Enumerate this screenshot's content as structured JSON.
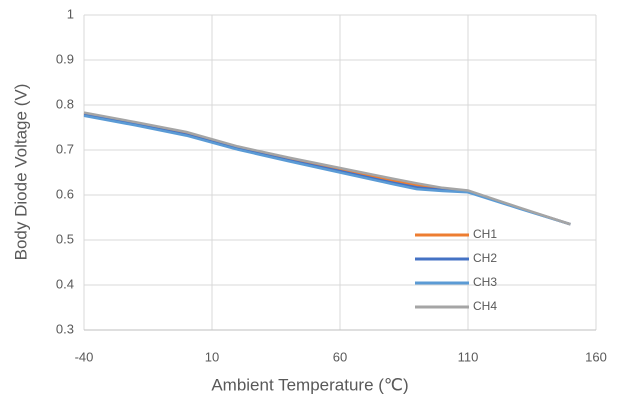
{
  "chart_data": {
    "type": "line",
    "x_label": "Ambient Temperature (℃)",
    "y_label": "Body Diode Voltage (V)",
    "x": [
      -40,
      -20,
      0,
      20,
      40,
      60,
      80,
      90,
      100,
      110,
      130,
      150
    ],
    "series": [
      {
        "name": "CH1",
        "color": "#ed7d31",
        "values": [
          0.781,
          0.76,
          0.738,
          0.706,
          0.68,
          0.657,
          0.633,
          0.622,
          0.614,
          0.608,
          0.571,
          0.535
        ]
      },
      {
        "name": "CH2",
        "color": "#4472c4",
        "values": [
          0.778,
          0.757,
          0.734,
          0.703,
          0.677,
          0.653,
          0.628,
          0.617,
          0.611,
          0.607,
          0.571,
          0.535
        ]
      },
      {
        "name": "CH3",
        "color": "#5b9bd5",
        "values": [
          0.776,
          0.755,
          0.732,
          0.701,
          0.675,
          0.65,
          0.625,
          0.613,
          0.609,
          0.606,
          0.57,
          0.535
        ]
      },
      {
        "name": "CH4",
        "color": "#a5a5a5",
        "values": [
          0.783,
          0.762,
          0.74,
          0.708,
          0.683,
          0.66,
          0.637,
          0.626,
          0.616,
          0.61,
          0.572,
          0.535
        ]
      }
    ],
    "xlim": [
      -40,
      160
    ],
    "xticks": [
      -40,
      10,
      60,
      110,
      160
    ],
    "ylim": [
      0.3,
      1
    ],
    "yticks": [
      0.3,
      0.4,
      0.5,
      0.6,
      0.7,
      0.8,
      0.9,
      1
    ],
    "grid": true,
    "legend": "lower right"
  }
}
